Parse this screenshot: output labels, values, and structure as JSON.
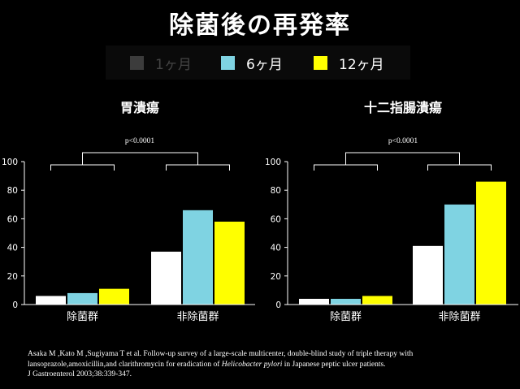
{
  "title": "除菌後の再発率",
  "legend": [
    {
      "label": "1ヶ月",
      "color": "#3c3c3c"
    },
    {
      "label": "6ヶ月",
      "color": "#7fd3e2"
    },
    {
      "label": "12ヶ月",
      "color": "#ffff00"
    }
  ],
  "chart_data": [
    {
      "type": "bar",
      "title": "胃潰瘍",
      "annotation": "p<0.0001",
      "categories": [
        "除菌群",
        "非除菌群"
      ],
      "series": [
        {
          "name": "1ヶ月",
          "color": "#ffffff",
          "values": [
            6,
            37
          ]
        },
        {
          "name": "6ヶ月",
          "color": "#7fd3e2",
          "values": [
            8,
            66
          ]
        },
        {
          "name": "12ヶ月",
          "color": "#ffff00",
          "values": [
            11,
            58
          ]
        }
      ],
      "ylim": [
        0,
        100
      ],
      "yticks": [
        "0",
        "20",
        "40",
        "60",
        "80",
        "100"
      ]
    },
    {
      "type": "bar",
      "title": "十二指腸潰瘍",
      "annotation": "p<0.0001",
      "categories": [
        "除菌群",
        "非除菌群"
      ],
      "series": [
        {
          "name": "1ヶ月",
          "color": "#ffffff",
          "values": [
            4,
            41
          ]
        },
        {
          "name": "6ヶ月",
          "color": "#7fd3e2",
          "values": [
            4,
            70
          ]
        },
        {
          "name": "12ヶ月",
          "color": "#ffff00",
          "values": [
            6,
            86
          ]
        }
      ],
      "ylim": [
        0,
        100
      ],
      "yticks": [
        "0",
        "20",
        "40",
        "60",
        "80",
        "100"
      ]
    }
  ],
  "citation": {
    "line1": "Asaka M ,Kato M ,Sugiyama T et al.   Follow-up survey of a large-scale multicenter, double-blind study of triple therapy with",
    "line2a": "lansoprazole,amoxicillin,and clarithromycin for eradication of ",
    "line2_italic": "Helicobacter pylori",
    "line2b": " in Japanese peptic ulcer patients.",
    "line3": "J Gastroenterol   2003;38:339-347."
  }
}
